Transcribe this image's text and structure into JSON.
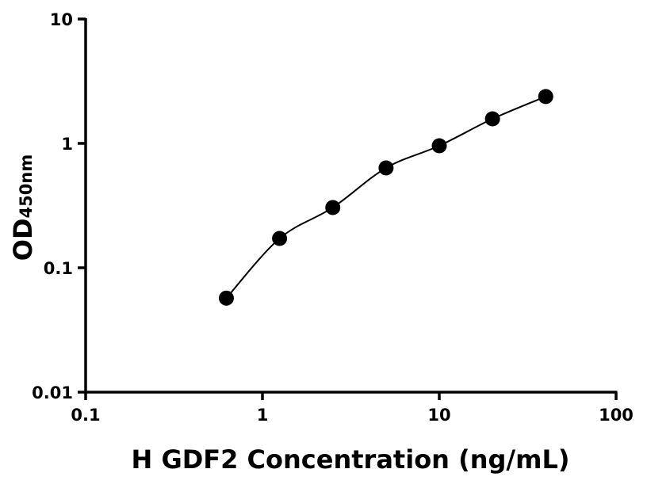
{
  "chart_data": {
    "type": "scatter",
    "xlabel": "H GDF2 Concentration (ng/mL)",
    "ylabel": "OD",
    "ylabel_subscript": "450nm",
    "x_scale": "log",
    "y_scale": "log",
    "xlim": [
      0.1,
      100
    ],
    "ylim": [
      0.01,
      10
    ],
    "x_ticks": [
      "0.1",
      "1",
      "10",
      "100"
    ],
    "y_ticks": [
      "0.01",
      "0.1",
      "1",
      "10"
    ],
    "grid": false,
    "fit_curve": true,
    "x": [
      0.625,
      1.25,
      2.5,
      5,
      10,
      20,
      40
    ],
    "y": [
      0.057,
      0.172,
      0.305,
      0.635,
      0.957,
      1.575,
      2.38
    ],
    "marker_color": "#000000"
  }
}
